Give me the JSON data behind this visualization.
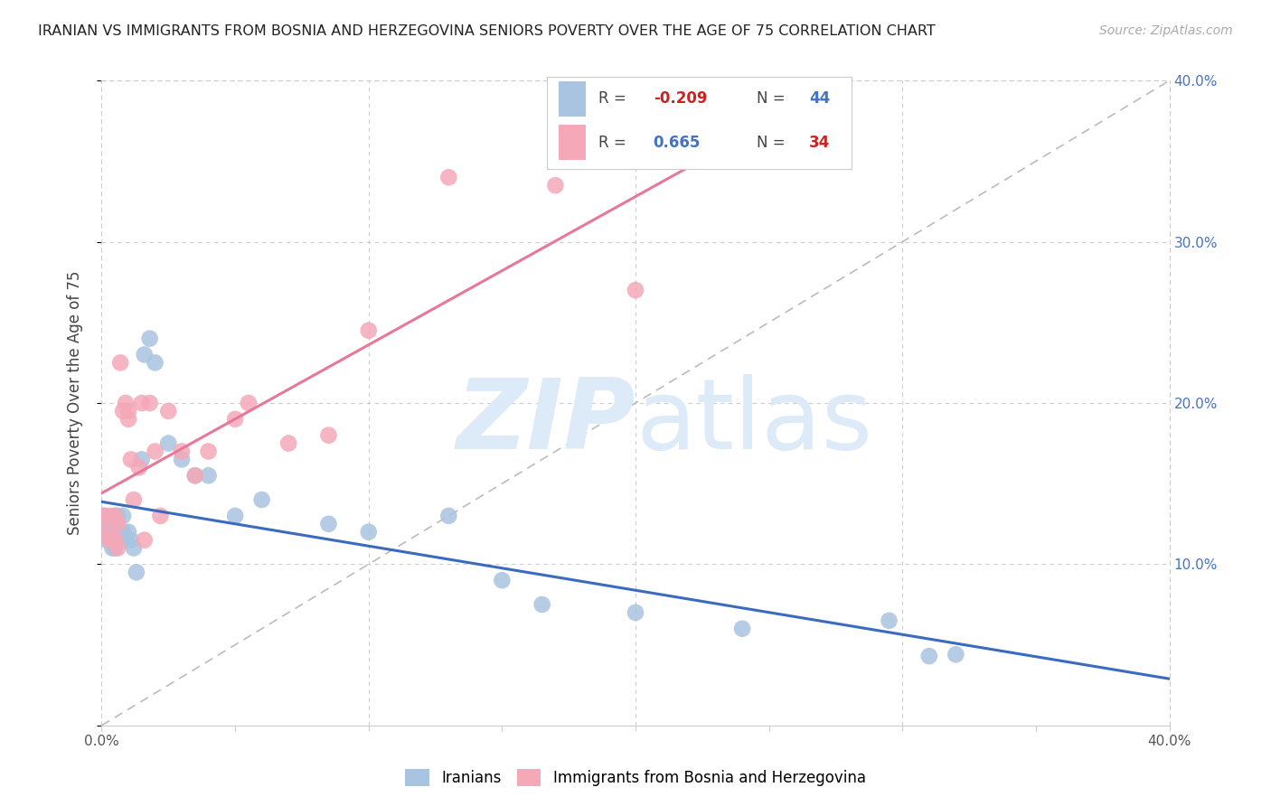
{
  "title": "IRANIAN VS IMMIGRANTS FROM BOSNIA AND HERZEGOVINA SENIORS POVERTY OVER THE AGE OF 75 CORRELATION CHART",
  "source": "Source: ZipAtlas.com",
  "ylabel": "Seniors Poverty Over the Age of 75",
  "xlim": [
    0.0,
    0.4
  ],
  "ylim": [
    0.0,
    0.4
  ],
  "iranian_color": "#a8c4e0",
  "bosnian_color": "#f4a8b8",
  "iranian_line_color": "#3a6bbf",
  "bosnian_line_color": "#e8789a",
  "diagonal_color": "#bbbbbb",
  "grid_color": "#cccccc",
  "background_color": "#ffffff",
  "watermark_color": "#ddeaf7",
  "legend_label_iranian": "Iranians",
  "legend_label_bosnian": "Immigrants from Bosnia and Herzegovina",
  "iranians_x": [
    0.001,
    0.002,
    0.002,
    0.003,
    0.003,
    0.003,
    0.004,
    0.004,
    0.005,
    0.005,
    0.005,
    0.005,
    0.006,
    0.006,
    0.006,
    0.007,
    0.007,
    0.008,
    0.008,
    0.009,
    0.01,
    0.011,
    0.012,
    0.013,
    0.015,
    0.016,
    0.018,
    0.02,
    0.025,
    0.03,
    0.035,
    0.04,
    0.05,
    0.06,
    0.085,
    0.1,
    0.13,
    0.15,
    0.165,
    0.2,
    0.24,
    0.295,
    0.31,
    0.32
  ],
  "iranians_y": [
    0.13,
    0.12,
    0.115,
    0.125,
    0.12,
    0.115,
    0.115,
    0.11,
    0.13,
    0.12,
    0.115,
    0.11,
    0.13,
    0.12,
    0.115,
    0.12,
    0.115,
    0.13,
    0.12,
    0.115,
    0.12,
    0.115,
    0.11,
    0.095,
    0.165,
    0.23,
    0.24,
    0.225,
    0.175,
    0.165,
    0.155,
    0.155,
    0.13,
    0.14,
    0.125,
    0.12,
    0.13,
    0.09,
    0.075,
    0.07,
    0.06,
    0.065,
    0.043,
    0.044
  ],
  "bosnians_x": [
    0.001,
    0.002,
    0.003,
    0.003,
    0.004,
    0.005,
    0.005,
    0.006,
    0.006,
    0.007,
    0.008,
    0.009,
    0.01,
    0.01,
    0.011,
    0.012,
    0.014,
    0.015,
    0.016,
    0.018,
    0.02,
    0.022,
    0.025,
    0.03,
    0.035,
    0.04,
    0.05,
    0.055,
    0.07,
    0.085,
    0.1,
    0.13,
    0.17,
    0.2
  ],
  "bosnians_y": [
    0.13,
    0.12,
    0.13,
    0.115,
    0.115,
    0.13,
    0.115,
    0.125,
    0.11,
    0.225,
    0.195,
    0.2,
    0.195,
    0.19,
    0.165,
    0.14,
    0.16,
    0.2,
    0.115,
    0.2,
    0.17,
    0.13,
    0.195,
    0.17,
    0.155,
    0.17,
    0.19,
    0.2,
    0.175,
    0.18,
    0.245,
    0.34,
    0.335,
    0.27
  ]
}
